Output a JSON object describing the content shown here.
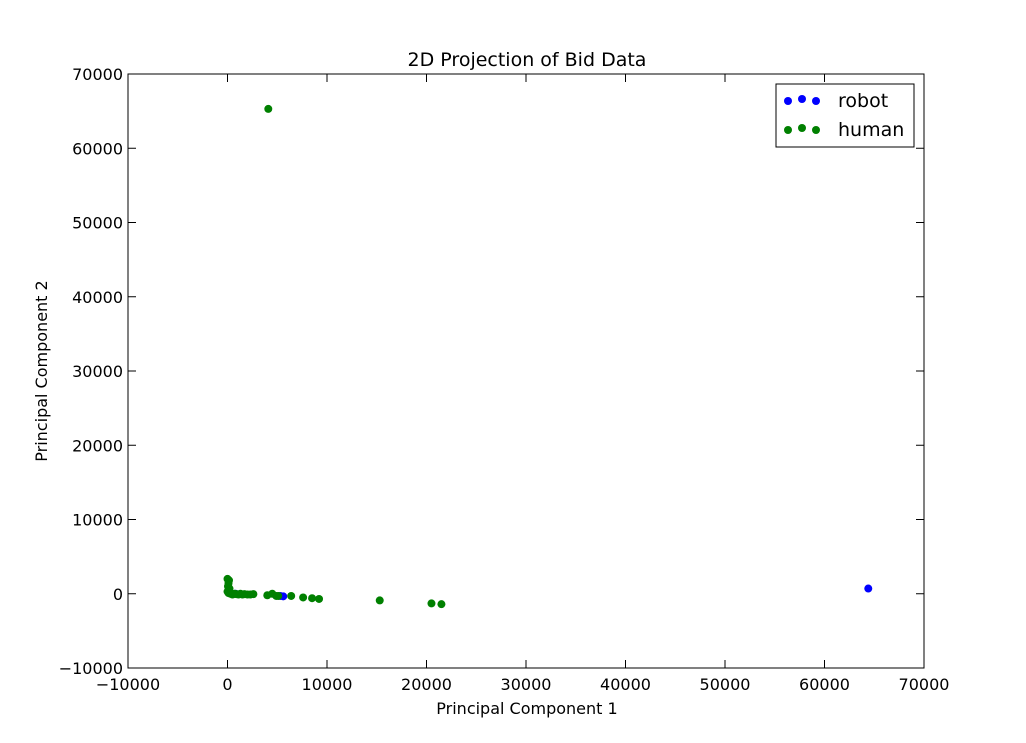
{
  "chart_data": {
    "type": "scatter",
    "title": "2D Projection of Bid Data",
    "xlabel": "Principal Component 1",
    "ylabel": "Principal Component 2",
    "xlim": [
      -10000,
      70000
    ],
    "ylim": [
      -10000,
      70000
    ],
    "xticks": [
      -10000,
      0,
      10000,
      20000,
      30000,
      40000,
      50000,
      60000,
      70000
    ],
    "yticks": [
      -10000,
      0,
      10000,
      20000,
      30000,
      40000,
      50000,
      60000,
      70000
    ],
    "xtick_labels": [
      "−10000",
      "0",
      "10000",
      "20000",
      "30000",
      "40000",
      "50000",
      "60000",
      "70000"
    ],
    "ytick_labels": [
      "−10000",
      "0",
      "10000",
      "20000",
      "30000",
      "40000",
      "50000",
      "60000",
      "70000"
    ],
    "grid": false,
    "legend_position": "top-right",
    "series": [
      {
        "name": "robot",
        "color": "#0000ff",
        "points": [
          [
            64400,
            700
          ],
          [
            5300,
            -300
          ],
          [
            5600,
            -350
          ],
          [
            300,
            100
          ],
          [
            800,
            0
          ]
        ]
      },
      {
        "name": "human",
        "color": "#008000",
        "points": [
          [
            4100,
            65300
          ],
          [
            0,
            2000
          ],
          [
            150,
            1800
          ],
          [
            100,
            1400
          ],
          [
            50,
            1000
          ],
          [
            200,
            700
          ],
          [
            0,
            300
          ],
          [
            100,
            100
          ],
          [
            300,
            0
          ],
          [
            500,
            -100
          ],
          [
            700,
            0
          ],
          [
            900,
            -50
          ],
          [
            1100,
            -100
          ],
          [
            1300,
            0
          ],
          [
            1500,
            -100
          ],
          [
            1700,
            -50
          ],
          [
            2000,
            -100
          ],
          [
            2300,
            -100
          ],
          [
            2600,
            -50
          ],
          [
            4000,
            -200
          ],
          [
            4500,
            0
          ],
          [
            4900,
            -300
          ],
          [
            5100,
            -300
          ],
          [
            6400,
            -300
          ],
          [
            7600,
            -500
          ],
          [
            8500,
            -600
          ],
          [
            9200,
            -700
          ],
          [
            15300,
            -900
          ],
          [
            20500,
            -1300
          ],
          [
            21500,
            -1400
          ]
        ]
      }
    ]
  }
}
